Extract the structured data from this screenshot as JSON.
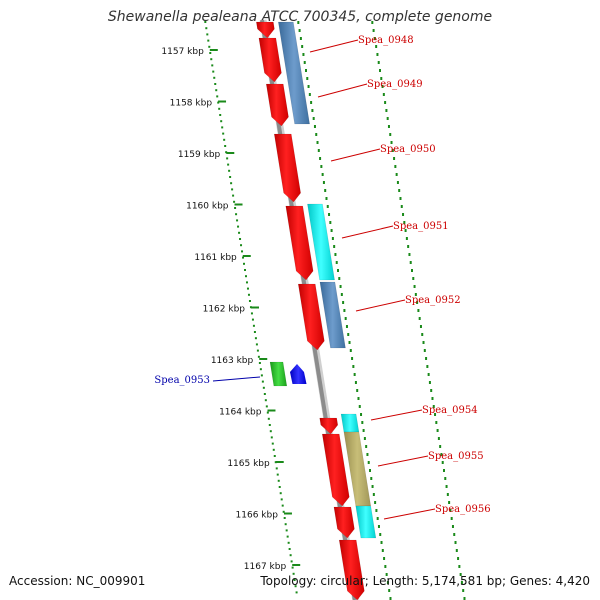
{
  "title": "Shewanella pealeana ATCC 700345, complete genome",
  "footer": {
    "accession": "Accession: NC_009901",
    "topology": "Topology: circular; Length: 5,174,581 bp; Genes: 4,420"
  },
  "ruler": {
    "unit": "kbp",
    "ticks": [
      "1157 kbp",
      "1158 kbp",
      "1159 kbp",
      "1160 kbp",
      "1161 kbp",
      "1162 kbp",
      "1163 kbp",
      "1164 kbp",
      "1165 kbp",
      "1166 kbp",
      "1167 kbp"
    ]
  },
  "colors": {
    "forward_cds": "#ff0000",
    "reverse_steelblue": "#4f82b4",
    "reverse_cyan": "#00f0f0",
    "reverse_khaki": "#b4aa64",
    "inner_green": "#22bb22",
    "inner_blue": "#0000ff",
    "label_red": "#cc0000",
    "label_blue": "#0000aa",
    "ruler_green": "#1a8a1a",
    "backbone": "#8c8c8c"
  },
  "genes": [
    {
      "label": "Spea_0948",
      "color": "label_red"
    },
    {
      "label": "Spea_0949",
      "color": "label_red"
    },
    {
      "label": "Spea_0950",
      "color": "label_red"
    },
    {
      "label": "Spea_0951",
      "color": "label_red"
    },
    {
      "label": "Spea_0952",
      "color": "label_red"
    },
    {
      "label": "Spea_0953",
      "color": "label_blue"
    },
    {
      "label": "Spea_0954",
      "color": "label_red"
    },
    {
      "label": "Spea_0955",
      "color": "label_red"
    },
    {
      "label": "Spea_0956",
      "color": "label_red"
    }
  ]
}
